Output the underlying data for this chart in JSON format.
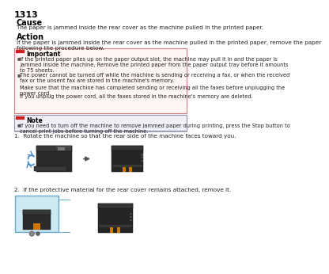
{
  "page_number": "1313",
  "bg_color": "#ffffff",
  "cause_title": "Cause",
  "cause_text": "The paper is jammed inside the rear cover as the machine pulled in the printed paper.",
  "action_title": "Action",
  "action_text": "If the paper is jammed inside the rear cover as the machine pulled in the printed paper, remove the paper\nfollowing the procedure below.",
  "important_title": "Important",
  "important_bg": "#fff5f5",
  "important_border": "#d08080",
  "important_bullet1": "If the printed paper piles up on the paper output slot, the machine may pull it in and the paper is\njammed inside the machine. Remove the printed paper from the paper output tray before it amounts\nto 75 sheets.",
  "important_bullet2a": "The power cannot be turned off while the machine is sending or receiving a fax, or when the received\nfax or the unsent fax are stored in the machine's memory.",
  "important_bullet2b": "Make sure that the machine has completed sending or receiving all the faxes before unplugging the\npower cord.",
  "important_bullet2c": "If you unplug the power cord, all the faxes stored in the machine's memory are deleted.",
  "note_title": "Note",
  "note_bg": "#ffffff",
  "note_border": "#9090b0",
  "note_text": "If you need to turn off the machine to remove jammed paper during printing, press the Stop button to\ncancel print jobs before turning off the machine.",
  "step1_text": "1.  Rotate the machine so that the rear side of the machine faces toward you.",
  "step2_text": "2.  If the protective material for the rear cover remains attached, remove it.",
  "text_color": "#222222",
  "printer_dark": "#2d2d2d",
  "printer_mid": "#3d3d3d",
  "printer_light": "#555555",
  "arrow_blue": "#4488cc",
  "orange_clip": "#cc7700",
  "zoom_box_bg": "#cce8f0",
  "zoom_box_border": "#66aacc"
}
